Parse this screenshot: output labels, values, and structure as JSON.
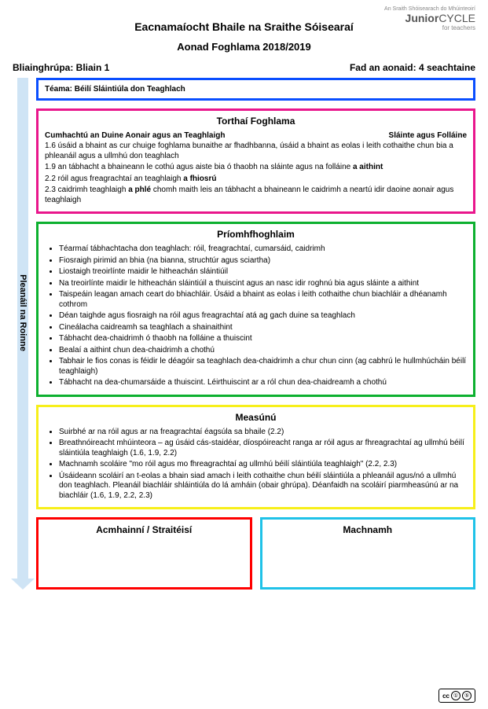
{
  "logo": {
    "tagline": "An Sraith Shóisearach do Mhúinteoirí",
    "main1": "Junior",
    "main2": "CYCLE",
    "sub": "for teachers"
  },
  "titles": {
    "main": "Eacnamaíocht Bhaile na Sraithe Sóisearaí",
    "sub": "Aonad Foghlama 2018/2019"
  },
  "info": {
    "left": "Bliainghrúpa: Bliain 1",
    "right": "Fad an aonaid: 4 seachtaine"
  },
  "arrow_label": "Pleanáil na Roinne",
  "theme": {
    "label": "Téama: Béilí Sláintiúla don Teaghlach",
    "border": "#0a4eff"
  },
  "outcomes": {
    "title": "Torthaí Foghlama",
    "border": "#e9168c",
    "head_left": "Cumhachtú an Duine Aonair agus an Teaghlaigh",
    "head_right": "Sláinte agus Folláine",
    "lines": [
      "1.6 úsáid a bhaint as cur chuige foghlama bunaithe ar fhadhbanna, úsáid a bhaint as eolas i leith cothaithe chun bia a phleanáil agus a ullmhú don teaghlach",
      "1.9 an tábhacht a bhaineann le cothú agus aiste bia ó thaobh na sláinte agus na folláine <b>a aithint</b>",
      "2.2 róil agus freagrachtaí an teaghlaigh <b>a fhiosrú</b>",
      "2.3 caidrimh teaghlaigh <b>a phlé</b> chomh maith leis an tábhacht a bhaineann le caidrimh a neartú idir daoine aonair agus teaghlaigh"
    ]
  },
  "learning": {
    "title": "Príomhfhoghlaim",
    "border": "#0db02f",
    "items": [
      "Téarmaí tábhachtacha don teaghlach: róil, freagrachtaí, cumarsáid, caidrimh",
      "Fiosraigh pirimid an bhia (na bianna, struchtúr agus sciartha)",
      "Liostaigh treoirlínte maidir le hitheachán sláintiúil",
      "Na treoirlínte maidir le hitheachán sláintiúil a thuiscint agus an nasc idir roghnú bia agus sláinte a aithint",
      "Taispeáin leagan amach ceart do bhiachláir. Úsáid a bhaint as eolas i leith cothaithe chun biachláir a dhéanamh cothrom",
      "Déan taighde agus fiosraigh na róil agus freagrachtaí atá ag gach duine sa teaghlach",
      "Cineálacha caidreamh sa teaghlach a shainaithint",
      "Tábhacht dea-chaidrimh ó thaobh na folláine a thuiscint",
      "Bealaí a aithint chun dea-chaidrimh a chothú",
      "Tabhair le fios conas is féidir le déagóir sa teaghlach dea-chaidrimh a chur chun cinn (ag cabhrú le hullmhúcháin béilí teaghlaigh)",
      "Tábhacht na dea-chumarsáide a thuiscint. Léirthuiscint ar a ról chun dea-chaidreamh a chothú"
    ]
  },
  "assessment": {
    "title": "Measúnú",
    "border": "#f7ef1a",
    "items": [
      "Suirbhé ar na róil agus ar na freagrachtaí éagsúla sa bhaile (2.2)",
      "Breathnóireacht mhúinteora – ag úsáid cás-staidéar, díospóireacht ranga ar róil agus ar fhreagrachtaí ag ullmhú béilí sláintiúla teaghlaigh (1.6, 1.9, 2.2)",
      "Machnamh scoláire \"mo róil agus mo fhreagrachtaí ag ullmhú béilí sláintiúla teaghlaigh\" (2.2, 2.3)",
      "Úsáideann scoláirí an t-eolas a bhain siad amach i leith cothaithe chun béilí sláintiúla a phleanáil agus/nó a ullmhú don teaghlach. Pleanáil biachláir shláintiúla do lá amháin (obair ghrúpa). Déanfaidh na scoláirí piarmheasúnú ar na biachláir (1.6, 1.9, 2.2, 2.3)"
    ]
  },
  "bottom": {
    "left": {
      "title": "Acmhainní / Straitéisí",
      "border": "#ff0000"
    },
    "right": {
      "title": "Machnamh",
      "border": "#1fc2e8"
    }
  },
  "cc": {
    "label": "cc",
    "c1": "①",
    "c2": "⑤",
    "by": "BY",
    "nc": "NC"
  }
}
